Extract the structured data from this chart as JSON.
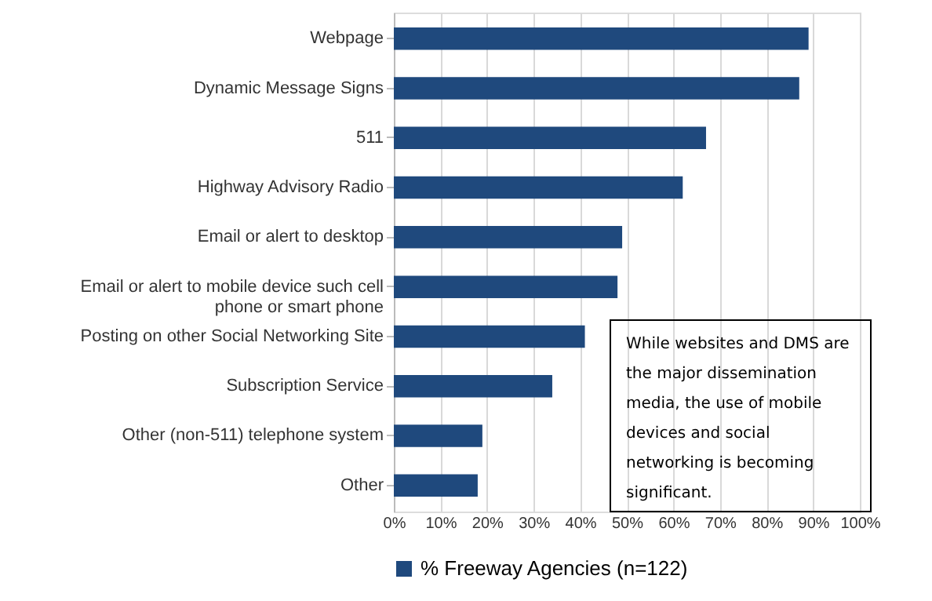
{
  "chart_data": {
    "type": "bar",
    "orientation": "horizontal",
    "categories": [
      "Webpage",
      "Dynamic Message Signs",
      "511",
      "Highway Advisory Radio",
      "Email or alert to desktop",
      "Email or alert to mobile device such cell phone or smart phone",
      "Posting on other Social Networking Site",
      "Subscription Service",
      "Other (non-511) telephone system",
      "Other"
    ],
    "series": [
      {
        "name": "% Freeway Agencies (n=122)",
        "color": "#1f497d",
        "values": [
          89,
          87,
          67,
          62,
          49,
          48,
          41,
          34,
          19,
          18
        ]
      }
    ],
    "xlim": [
      0,
      100
    ],
    "xticks": [
      {
        "value": 0,
        "label": "0%"
      },
      {
        "value": 10,
        "label": "10%"
      },
      {
        "value": 20,
        "label": "20%"
      },
      {
        "value": 30,
        "label": "30%"
      },
      {
        "value": 40,
        "label": "40%"
      },
      {
        "value": 50,
        "label": "50%"
      },
      {
        "value": 60,
        "label": "60%"
      },
      {
        "value": 70,
        "label": "70%"
      },
      {
        "value": 80,
        "label": "80%"
      },
      {
        "value": 90,
        "label": "90%"
      },
      {
        "value": 100,
        "label": "100%"
      }
    ],
    "grid": "x",
    "legend": "bottom",
    "annotations": [
      "While websites and DMS are the major dissemination media, the use of mobile devices and social networking is becoming significant."
    ]
  }
}
